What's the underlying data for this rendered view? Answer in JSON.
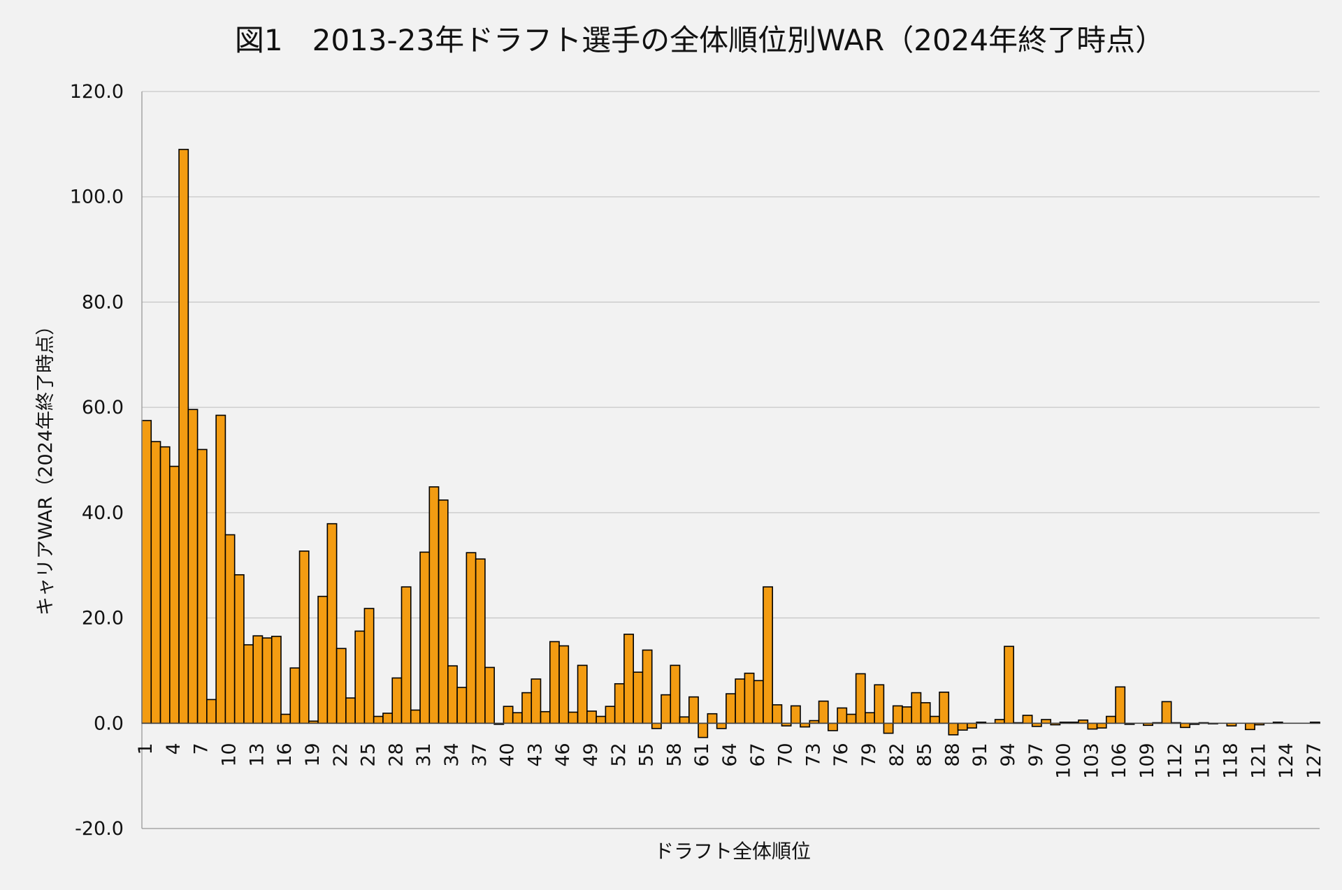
{
  "chart_data": {
    "type": "bar",
    "title": "図1　2013-23年ドラフト選手の全体順位別WAR（2024年終了時点）",
    "xlabel": "ドラフト全体順位",
    "ylabel": "キャリアWAR（2024年終了時点）",
    "ylim": [
      -20,
      120
    ],
    "yticks": [
      "120.0",
      "100.0",
      "80.0",
      "60.0",
      "40.0",
      "20.0",
      "0.0",
      "-20.0"
    ],
    "ytick_values": [
      120,
      100,
      80,
      60,
      40,
      20,
      0,
      -20
    ],
    "x_tick_labels_shown_every": 3,
    "grid": true,
    "bar_color": "#f39c12",
    "bar_edge_color": "#000000",
    "grid_color": "#c8c8c8",
    "categories": [
      1,
      2,
      3,
      4,
      5,
      6,
      7,
      8,
      9,
      10,
      11,
      12,
      13,
      14,
      15,
      16,
      17,
      18,
      19,
      20,
      21,
      22,
      23,
      24,
      25,
      26,
      27,
      28,
      29,
      30,
      31,
      32,
      33,
      34,
      35,
      36,
      37,
      38,
      39,
      40,
      41,
      42,
      43,
      44,
      45,
      46,
      47,
      48,
      49,
      50,
      51,
      52,
      53,
      54,
      55,
      56,
      57,
      58,
      59,
      60,
      61,
      62,
      63,
      64,
      65,
      66,
      67,
      68,
      69,
      70,
      71,
      72,
      73,
      74,
      75,
      76,
      77,
      78,
      79,
      80,
      81,
      82,
      83,
      84,
      85,
      86,
      87,
      88,
      89,
      90,
      91,
      92,
      93,
      94,
      95,
      96,
      97,
      98,
      99,
      100,
      101,
      102,
      103,
      104,
      105,
      106,
      107,
      108,
      109,
      110,
      111,
      112,
      113,
      114,
      115,
      116,
      117,
      118,
      119,
      120,
      121,
      122,
      123,
      124,
      125,
      126,
      127
    ],
    "values": [
      57.5,
      53.5,
      52.5,
      48.8,
      109,
      59.6,
      52,
      4.5,
      58.5,
      35.8,
      28.2,
      14.9,
      16.6,
      16.2,
      16.5,
      1.7,
      10.5,
      32.7,
      0.4,
      24.1,
      37.9,
      14.2,
      4.8,
      17.5,
      21.8,
      1.3,
      1.9,
      8.6,
      25.9,
      2.5,
      32.5,
      44.9,
      42.4,
      10.9,
      6.8,
      32.4,
      31.2,
      10.6,
      -0.2,
      3.2,
      2,
      5.8,
      8.4,
      2.2,
      15.5,
      14.7,
      2.1,
      11,
      2.3,
      1.3,
      3.2,
      7.5,
      16.9,
      9.7,
      13.9,
      -1,
      5.4,
      11,
      1.2,
      5,
      -2.7,
      1.8,
      -1,
      5.6,
      8.4,
      9.5,
      8.1,
      25.9,
      3.5,
      -0.5,
      3.3,
      -0.7,
      0.5,
      4.2,
      -1.4,
      2.9,
      1.7,
      9.4,
      2,
      7.3,
      -1.9,
      3.3,
      3.1,
      5.8,
      3.9,
      1.3,
      5.9,
      -2.2,
      -1.3,
      -0.9,
      0.2,
      0,
      0.7,
      14.6,
      0.1,
      1.5,
      -0.6,
      0.7,
      -0.3,
      0.2,
      0.2,
      0.6,
      -1.1,
      -0.9,
      1.3,
      6.9,
      -0.2,
      0,
      -0.4,
      0.1,
      4.1,
      0.1,
      -0.8,
      -0.2,
      0.1,
      -0.1,
      0,
      -0.5,
      0,
      -1.2,
      -0.3,
      0,
      0.2,
      0,
      0,
      0,
      0.2
    ]
  }
}
